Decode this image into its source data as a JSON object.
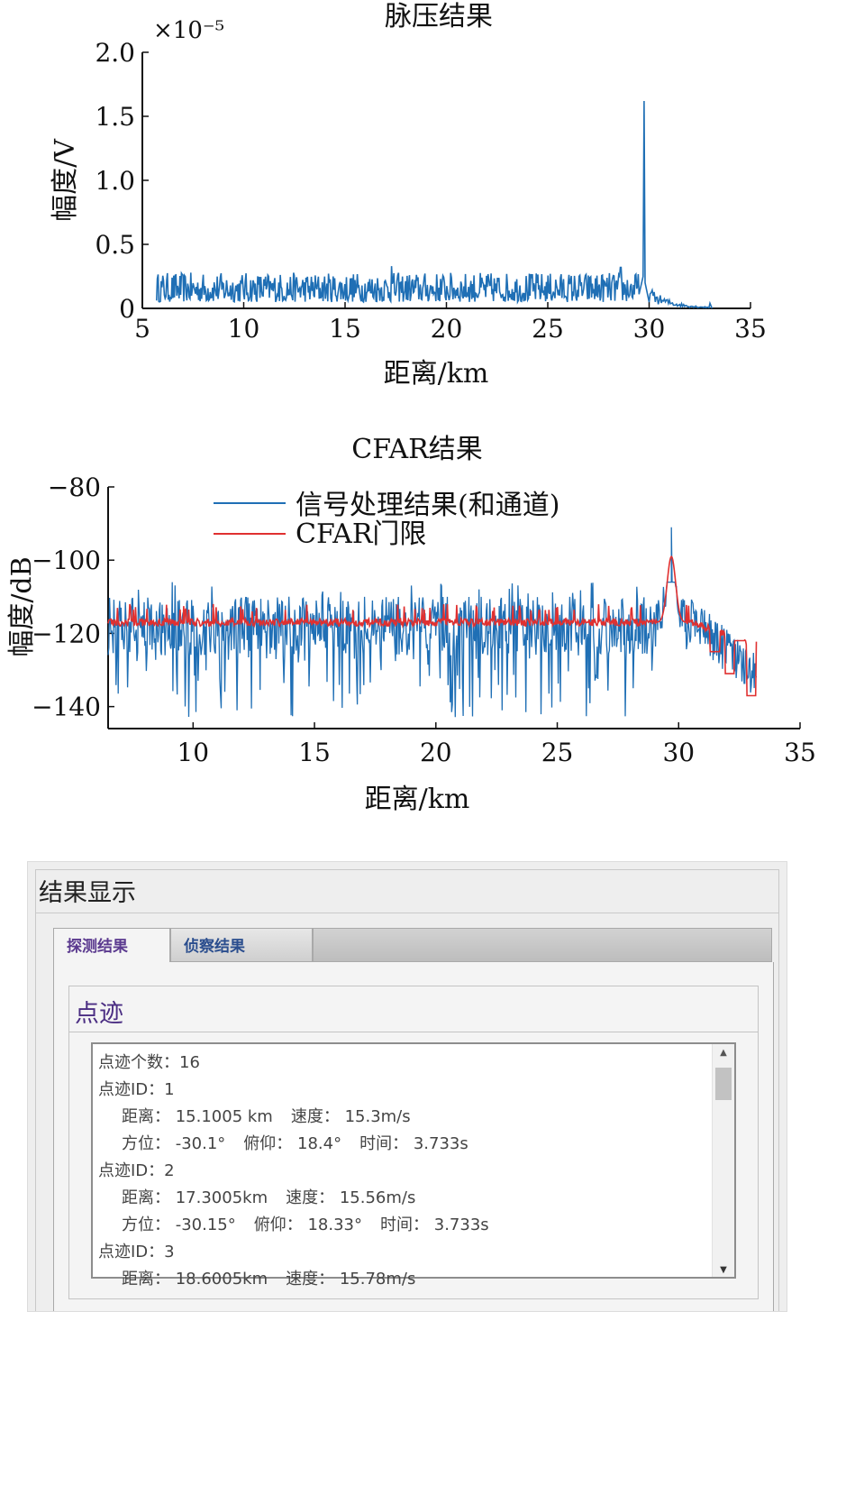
{
  "chart_data": [
    {
      "type": "line",
      "title": "脉压结果",
      "xlabel": "距离/km",
      "ylabel": "幅度/V",
      "y_exponent": "×10⁻⁵",
      "xlim": [
        5,
        35
      ],
      "ylim": [
        0,
        2.0
      ],
      "x_ticks": [
        "5",
        "10",
        "15",
        "20",
        "25",
        "30",
        "35"
      ],
      "y_ticks": [
        "0",
        "0.5",
        "1.0",
        "1.5",
        "2.0"
      ],
      "series": [
        {
          "color": "#1f6fb5",
          "noise_range_km": [
            5.7,
            29.5
          ],
          "noise_level": [
            0.05,
            0.28
          ],
          "peaks": [
            {
              "x": 17.3,
              "y": 0.33
            },
            {
              "x": 28.6,
              "y": 0.32
            },
            {
              "x": 29.75,
              "y": 1.62
            }
          ],
          "tail": [
            [
              30.0,
              0.2
            ],
            [
              30.5,
              0.05
            ],
            [
              31.0,
              0.12
            ],
            [
              32.0,
              0.08
            ],
            [
              32.5,
              0.05
            ],
            [
              33.0,
              0.04
            ],
            [
              33.1,
              0.0
            ]
          ]
        }
      ]
    },
    {
      "type": "line",
      "title": "CFAR结果",
      "xlabel": "距离/km",
      "ylabel": "幅度/dB",
      "xlim": [
        6.5,
        35
      ],
      "ylim": [
        -146,
        -80
      ],
      "x_ticks": [
        "10",
        "15",
        "20",
        "25",
        "30",
        "35"
      ],
      "y_ticks": [
        "−140",
        "−120",
        "−100",
        "−80"
      ],
      "legend": "top-center",
      "series": [
        {
          "name": "信号处理结果(和通道)",
          "color": "#1f6fb5",
          "baseline": -118,
          "noise_range_dB": [
            -143,
            -106
          ],
          "peak": {
            "x": 29.7,
            "y": -91
          }
        },
        {
          "name": "CFAR门限",
          "color": "#e03030",
          "baseline": -117,
          "peak": {
            "x": 29.7,
            "y": -99
          },
          "segments": [
            [
              31.5,
              -125
            ],
            [
              32.1,
              -131
            ],
            [
              32.5,
              -122
            ],
            [
              33.0,
              -137
            ]
          ]
        }
      ]
    }
  ],
  "panel": {
    "title": "结果显示",
    "tabs": [
      "探测结果",
      "侦察结果"
    ],
    "group_title": "点迹",
    "lines": [
      {
        "text": "点迹个数：16",
        "indent": false
      },
      {
        "text": "点迹ID：1",
        "indent": false
      },
      {
        "parts": [
          "距离： 15.1005 km",
          "速度： 15.3m/s"
        ],
        "indent": true
      },
      {
        "parts": [
          "方位： -30.1°",
          "俯仰： 18.4°",
          "时间： 3.733s"
        ],
        "indent": true
      },
      {
        "text": "点迹ID：2",
        "indent": false
      },
      {
        "parts": [
          "距离： 17.3005km",
          "速度： 15.56m/s"
        ],
        "indent": true
      },
      {
        "parts": [
          "方位： -30.15°",
          "俯仰： 18.33°",
          "时间： 3.733s"
        ],
        "indent": true
      },
      {
        "text": "点迹ID：3",
        "indent": false
      },
      {
        "parts": [
          "距离： 18.6005km",
          "速度： 15.78m/s"
        ],
        "indent": true
      }
    ],
    "scroll_up_icon": "triangle-up-icon",
    "scroll_down_icon": "triangle-down-icon"
  }
}
